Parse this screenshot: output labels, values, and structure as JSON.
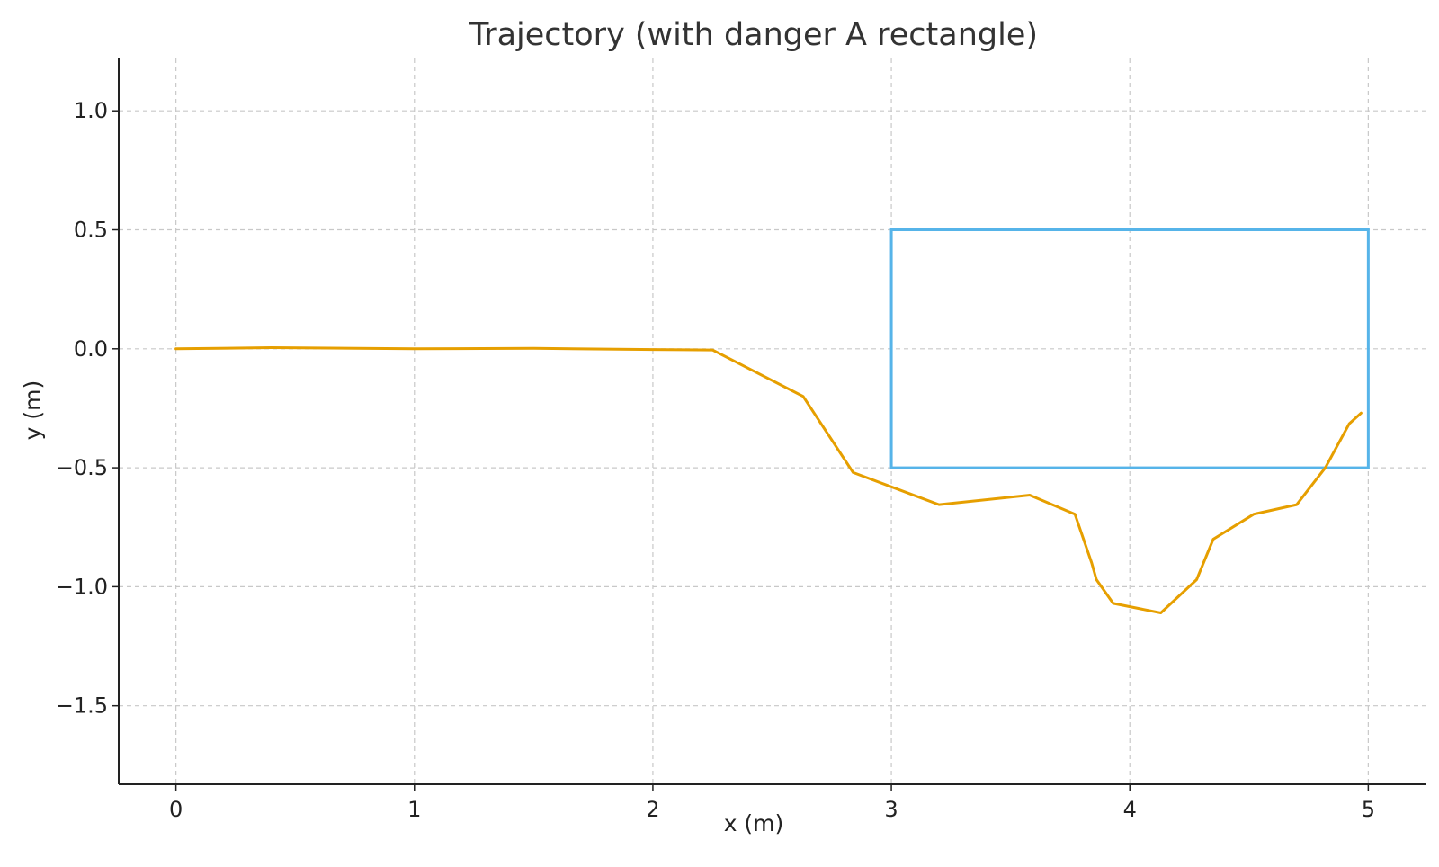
{
  "chart_data": {
    "type": "line",
    "title": "Trajectory (with danger A rectangle)",
    "xlabel": "x (m)",
    "ylabel": "y (m)",
    "xlim": [
      -0.24,
      5.24
    ],
    "ylim": [
      -1.83,
      1.22
    ],
    "grid": true,
    "x_ticks": [
      0,
      1,
      2,
      3,
      4,
      5
    ],
    "x_tick_labels": [
      "0",
      "1",
      "2",
      "3",
      "4",
      "5"
    ],
    "y_ticks": [
      1.0,
      0.5,
      0.0,
      -0.5,
      -1.0,
      -1.5
    ],
    "y_tick_labels": [
      "1.0",
      "0.5",
      "0.0",
      "−0.5",
      "−1.0",
      "−1.5"
    ],
    "series": [
      {
        "color": "#E69F00",
        "x": [
          0.0,
          0.4,
          1.0,
          1.5,
          2.0,
          2.25,
          2.63,
          2.84,
          3.2,
          3.58,
          3.77,
          3.84,
          3.86,
          3.93,
          4.13,
          4.28,
          4.35,
          4.52,
          4.7,
          4.82,
          4.92,
          4.97
        ],
        "y": [
          0.0,
          0.005,
          0.0,
          0.002,
          -0.003,
          -0.005,
          -0.2,
          -0.52,
          -0.655,
          -0.615,
          -0.695,
          -0.9,
          -0.97,
          -1.07,
          -1.11,
          -0.97,
          -0.8,
          -0.695,
          -0.655,
          -0.5,
          -0.315,
          -0.27
        ]
      }
    ],
    "annotations": [
      {
        "type": "rectangle",
        "name": "danger A rectangle",
        "x0": 3.0,
        "x1": 5.0,
        "y0": -0.5,
        "y1": 0.5,
        "color": "#56B4E9"
      }
    ]
  }
}
